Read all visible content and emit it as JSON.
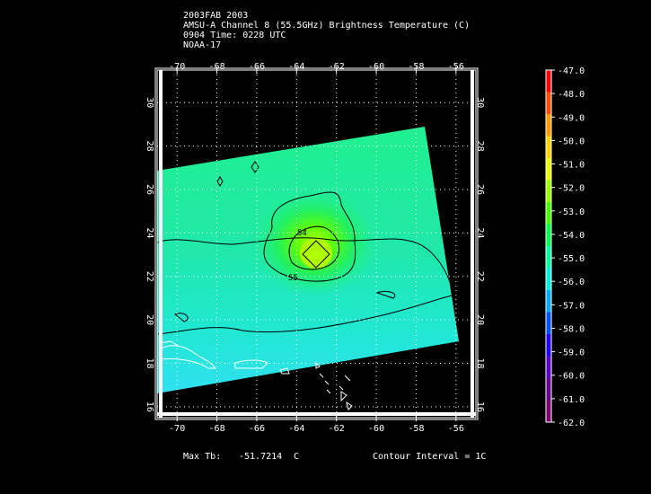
{
  "header": {
    "line1": "2003FAB 2003",
    "line2": "AMSU-A Channel 8 (55.5GHz) Brightness Temperature (C)",
    "line3": "0904 Time: 0228 UTC",
    "line4": "NOAA-17"
  },
  "map": {
    "lon_range": [
      -71,
      -55
    ],
    "lat_range": [
      15.5,
      31.5
    ],
    "lon_ticks": [
      "-70",
      "-68",
      "-66",
      "-64",
      "-62",
      "-60",
      "-58",
      "-56"
    ],
    "lat_ticks": [
      "16",
      "18",
      "20",
      "22",
      "24",
      "26",
      "28",
      "30"
    ],
    "contour_labels": [
      "54",
      "55"
    ],
    "coastline_color": "#ffffff",
    "contour_color": "#000000",
    "grid": "dotted white"
  },
  "colorbar": {
    "labels": [
      "-47.0",
      "-48.0",
      "-49.0",
      "-50.0",
      "-51.0",
      "-52.0",
      "-53.0",
      "-54.0",
      "-55.0",
      "-56.0",
      "-57.0",
      "-58.0",
      "-59.0",
      "-60.0",
      "-61.0",
      "-62.0"
    ],
    "colors": [
      "#ff0000",
      "#ff4a00",
      "#ff9900",
      "#ffd200",
      "#e8ff00",
      "#9cff00",
      "#44ff00",
      "#00ff4a",
      "#00ffa0",
      "#00f0e0",
      "#00aaff",
      "#0050ff",
      "#2200ff",
      "#5a00c8",
      "#6a0090",
      "#800070"
    ]
  },
  "footer": {
    "max_tb_label": "Max Tb:",
    "max_tb_value": "-51.7214",
    "max_tb_unit": "C",
    "contour_interval": "Contour Interval = 1C"
  }
}
